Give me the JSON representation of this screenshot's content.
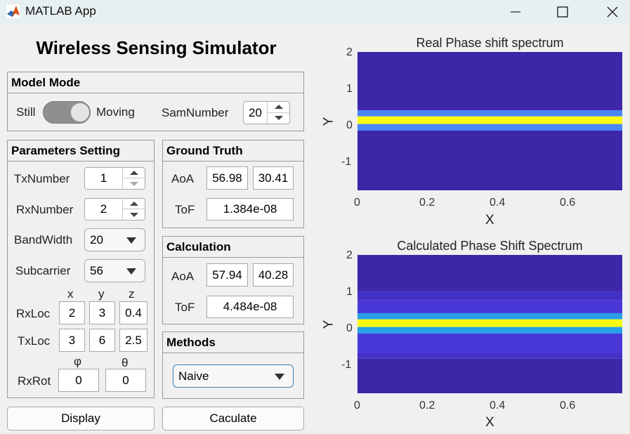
{
  "window": {
    "title": "MATLAB App",
    "minimize_icon": "minimize-icon",
    "maximize_icon": "maximize-icon",
    "close_icon": "close-icon"
  },
  "app": {
    "heading": "Wireless Sensing Simulator"
  },
  "model_mode": {
    "title": "Model Mode",
    "still_label": "Still",
    "moving_label": "Moving",
    "toggle_state": "Still",
    "sam_label": "SamNumber",
    "sam_value": "20"
  },
  "params": {
    "title": "Parameters Setting",
    "tx_label": "TxNumber",
    "tx_value": "1",
    "rx_label": "RxNumber",
    "rx_value": "2",
    "bw_label": "BandWidth",
    "bw_value": "20",
    "sub_label": "Subcarrier",
    "sub_value": "56",
    "col_x": "x",
    "col_y": "y",
    "col_z": "z",
    "rxloc_label": "RxLoc",
    "rxloc": [
      "2",
      "3",
      "0.4"
    ],
    "txloc_label": "TxLoc",
    "txloc": [
      "3",
      "6",
      "2.5"
    ],
    "col_phi": "φ",
    "col_theta": "θ",
    "rxrot_label": "RxRot",
    "rxrot": [
      "0",
      "0"
    ]
  },
  "ground_truth": {
    "title": "Ground Truth",
    "aoa_label": "AoA",
    "aoa": [
      "56.98",
      "30.41"
    ],
    "tof_label": "ToF",
    "tof": "1.384e-08"
  },
  "calculation": {
    "title": "Calculation",
    "aoa_label": "AoA",
    "aoa": [
      "57.94",
      "40.28"
    ],
    "tof_label": "ToF",
    "tof": "4.484e-08"
  },
  "methods": {
    "title": "Methods",
    "value": "Naive"
  },
  "buttons": {
    "display": "Display",
    "calculate": "Caculate"
  },
  "chart_data": [
    {
      "type": "heatmap",
      "title": "Real Phase shift spectrum",
      "xlabel": "X",
      "ylabel": "Y",
      "xlim": [
        0,
        0.75
      ],
      "ylim": [
        -1.8,
        2
      ],
      "xticks": [
        "0",
        "0.2",
        "0.4",
        "0.6"
      ],
      "yticks": [
        "2",
        "1",
        "0",
        "-1"
      ],
      "colors": {
        "low": "#3e26a8",
        "mid": "#4a87f7",
        "high": "#f9fb15"
      },
      "bands": [
        {
          "y0": 2.0,
          "y1": 0.4,
          "level": "low"
        },
        {
          "y0": 0.4,
          "y1": 0.23,
          "level": "mid"
        },
        {
          "y0": 0.23,
          "y1": 0.02,
          "level": "high"
        },
        {
          "y0": 0.02,
          "y1": -0.16,
          "level": "mid"
        },
        {
          "y0": -0.16,
          "y1": -1.8,
          "level": "low"
        }
      ]
    },
    {
      "type": "heatmap",
      "title": "Calculated Phase Shift Spectrum",
      "xlabel": "X",
      "ylabel": "Y",
      "xlim": [
        0,
        0.75
      ],
      "ylim": [
        -1.8,
        2
      ],
      "xticks": [
        "0",
        "0.2",
        "0.4",
        "0.6"
      ],
      "yticks": [
        "2",
        "1",
        "0",
        "-1"
      ],
      "colors": {
        "low": "#3e26a8",
        "low2": "#4331c6",
        "low3": "#4937d8",
        "mid": "#2aa0e6",
        "high": "#f9fb15"
      },
      "bands": [
        {
          "y0": 2.0,
          "y1": 1.0,
          "level": "low"
        },
        {
          "y0": 1.0,
          "y1": 0.75,
          "level": "low2"
        },
        {
          "y0": 0.75,
          "y1": 0.4,
          "level": "low3"
        },
        {
          "y0": 0.4,
          "y1": 0.23,
          "level": "mid"
        },
        {
          "y0": 0.23,
          "y1": 0.02,
          "level": "high"
        },
        {
          "y0": 0.02,
          "y1": -0.16,
          "level": "mid"
        },
        {
          "y0": -0.16,
          "y1": -0.7,
          "level": "low3"
        },
        {
          "y0": -0.7,
          "y1": -0.85,
          "level": "low2"
        },
        {
          "y0": -0.85,
          "y1": -1.8,
          "level": "low"
        }
      ]
    }
  ]
}
